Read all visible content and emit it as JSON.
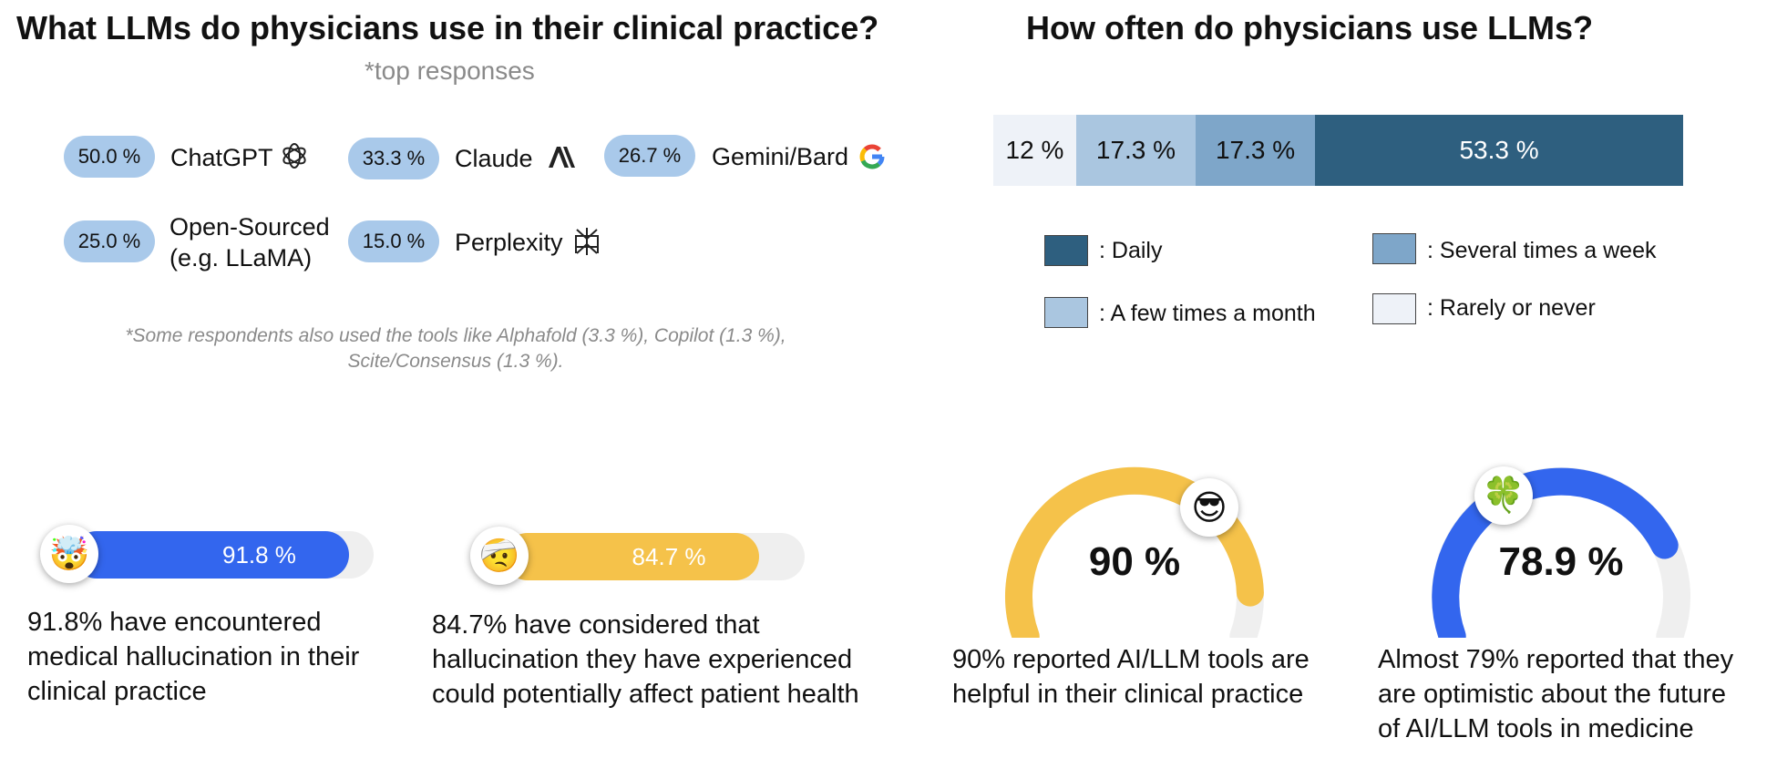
{
  "left_title": "What LLMs do physicians use in their clinical practice?",
  "left_subtitle": "*top responses",
  "tools": [
    {
      "pct": "50.0 %",
      "name_line1": "ChatGPT",
      "name_line2": "",
      "icon": "openai-logo-icon"
    },
    {
      "pct": "33.3 %",
      "name_line1": "Claude",
      "name_line2": "",
      "icon": "anthropic-logo-icon"
    },
    {
      "pct": "26.7 %",
      "name_line1": "Gemini/Bard",
      "name_line2": "",
      "icon": "google-logo-icon"
    },
    {
      "pct": "25.0 %",
      "name_line1": "Open-Sourced",
      "name_line2": "(e.g. LLaMA)",
      "icon": ""
    },
    {
      "pct": "15.0 %",
      "name_line1": "Perplexity",
      "name_line2": "",
      "icon": "perplexity-logo-icon"
    }
  ],
  "tools_note_line1": "*Some respondents also used the tools like Alphafold (3.3 %), Copilot (1.3 %),",
  "tools_note_line2": "Scite/Consensus (1.3 %).",
  "right_title": "How often do physicians use LLMs?",
  "legend": {
    "daily": ":  Daily",
    "several": ":  Several times a week",
    "few": ":  A few times a month",
    "rarely": ":  Rarely or never"
  },
  "colors": {
    "daily": "#2e5f7f",
    "several": "#7ea6c9",
    "few": "#aac6e0",
    "rarely": "#eef2f8",
    "pill": "#a9c9ea",
    "blue": "#3366ee",
    "yellow": "#f5c24a",
    "track": "#efefef"
  },
  "hallucination": {
    "encountered_value": "91.8 %",
    "encountered_emoji": "🤯",
    "encountered_caption_1": "91.8% have encountered",
    "encountered_caption_2": "medical hallucination in their",
    "encountered_caption_3": "clinical practice",
    "considered_value": "84.7 %",
    "considered_emoji": "🤕",
    "considered_caption_1": "84.7% have considered that",
    "considered_caption_2": "hallucination they have experienced",
    "considered_caption_3": "could potentially affect patient health"
  },
  "gauges": {
    "helpful_value": "90 %",
    "helpful_emoji": "😎",
    "helpful_caption_1": "90% reported AI/LLM tools are",
    "helpful_caption_2": "helpful in their clinical practice",
    "optimistic_value": "78.9 %",
    "optimistic_emoji": "🍀",
    "optimistic_caption_1": "Almost 79% reported that they",
    "optimistic_caption_2": "are optimistic about the future",
    "optimistic_caption_3": "of AI/LLM tools in medicine"
  },
  "chart_data": [
    {
      "type": "bar",
      "orientation": "horizontal-stacked",
      "title": "How often do physicians use LLMs?",
      "series": [
        {
          "name": "Rarely or never",
          "value": 12,
          "label": "12 %"
        },
        {
          "name": "A few times a month",
          "value": 17.3,
          "label": "17.3 %"
        },
        {
          "name": "Several times a week",
          "value": 17.3,
          "label": "17.3 %"
        },
        {
          "name": "Daily",
          "value": 53.3,
          "label": "53.3 %"
        }
      ],
      "legend_placement": "bottom"
    },
    {
      "type": "bar",
      "orientation": "horizontal",
      "categories": [
        "encountered medical hallucination",
        "considered hallucination could affect patient health"
      ],
      "values": [
        91.8,
        84.7
      ]
    },
    {
      "type": "gauge",
      "categories": [
        "helpful in clinical practice",
        "optimistic about the future"
      ],
      "values": [
        90,
        78.9
      ]
    }
  ]
}
